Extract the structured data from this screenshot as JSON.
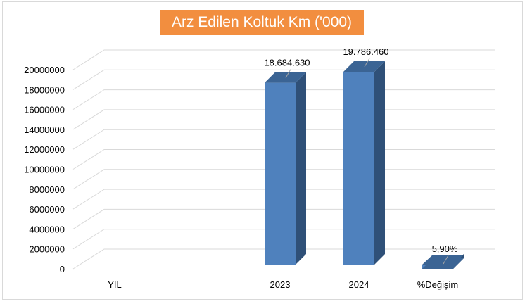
{
  "chart_data": {
    "type": "bar",
    "title": "Arz Edilen Koltuk Km ('000)",
    "categories": [
      "YIL",
      "2023",
      "2024",
      "%Değişim"
    ],
    "values": [
      0,
      18684630,
      19786460,
      5.9
    ],
    "data_labels": [
      "",
      "18.684.630",
      "19.786.460",
      "5,90%"
    ],
    "ylim": [
      0,
      20000000
    ],
    "yticks": [
      0,
      2000000,
      4000000,
      6000000,
      8000000,
      10000000,
      12000000,
      14000000,
      16000000,
      18000000,
      20000000
    ],
    "ytick_labels": [
      "0",
      "2000000",
      "4000000",
      "6000000",
      "8000000",
      "10000000",
      "12000000",
      "14000000",
      "16000000",
      "18000000",
      "20000000"
    ],
    "xlabel": "",
    "ylabel": "",
    "grid": true,
    "style": "3d-column",
    "colors": {
      "bar_front": "#4f81bd",
      "bar_side": "#2f5078",
      "bar_top": "#3b6494",
      "title_background": "#f28e3f",
      "title_text": "#ffffff",
      "grid": "#d9d9d9"
    }
  }
}
